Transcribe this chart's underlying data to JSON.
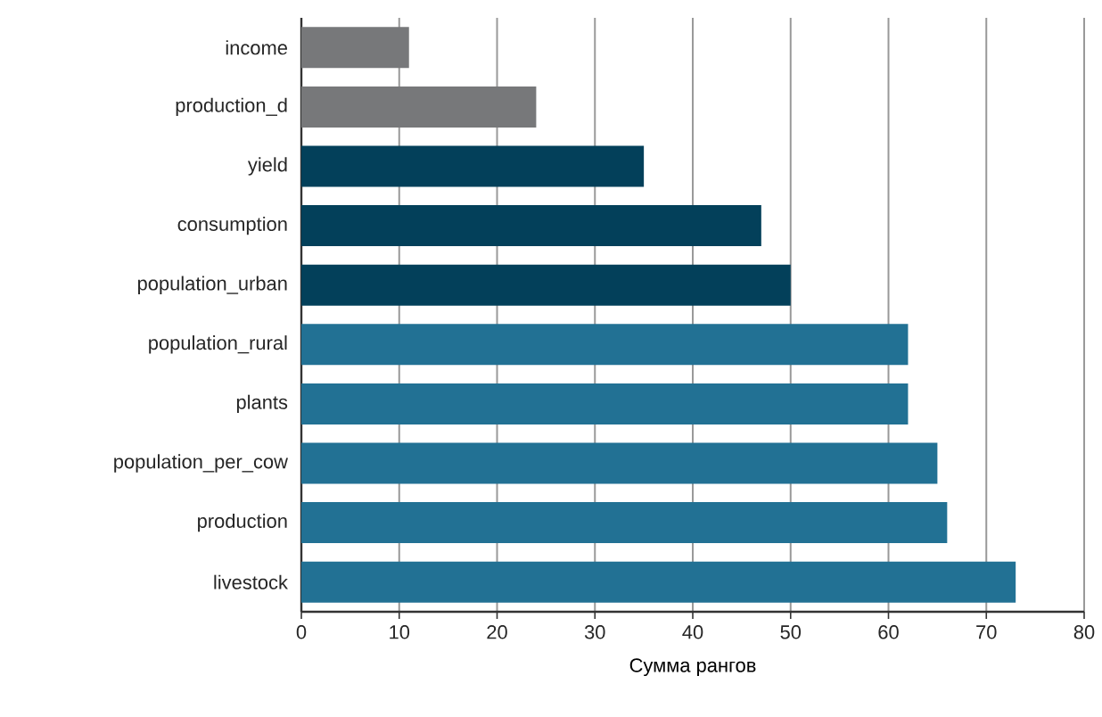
{
  "chart_data": {
    "type": "bar",
    "orientation": "horizontal",
    "xlabel": "Сумма рангов",
    "categories": [
      "income",
      "production_d",
      "yield",
      "consumption",
      "population_urban",
      "population_rural",
      "plants",
      "population_per_cow",
      "production",
      "livestock"
    ],
    "values": [
      11,
      24,
      35,
      47,
      50,
      62,
      62,
      65,
      66,
      73
    ],
    "colors": [
      "#77787a",
      "#77787a",
      "#03405a",
      "#03405a",
      "#03405a",
      "#227194",
      "#227194",
      "#227194",
      "#227194",
      "#227194"
    ],
    "xlim": [
      0,
      80
    ],
    "xticks": [
      0,
      10,
      20,
      30,
      40,
      50,
      60,
      70,
      80
    ],
    "grid": "x"
  }
}
